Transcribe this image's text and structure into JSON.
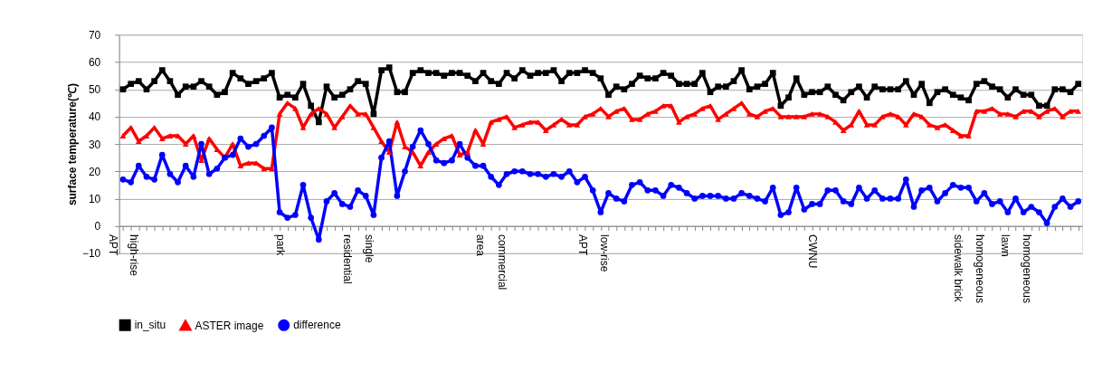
{
  "chart_data": {
    "type": "line",
    "ylabel": "surface temperature(℃)",
    "categories": [
      "high-rise\nAPT",
      null,
      null,
      null,
      null,
      null,
      null,
      null,
      null,
      null,
      null,
      null,
      null,
      null,
      null,
      null,
      null,
      null,
      null,
      null,
      "park",
      null,
      null,
      null,
      null,
      null,
      null,
      null,
      null,
      null,
      "single\nresidential",
      null,
      null,
      null,
      null,
      null,
      null,
      null,
      null,
      null,
      null,
      null,
      null,
      null,
      null,
      null,
      null,
      "commercial\narea",
      null,
      null,
      null,
      null,
      null,
      null,
      null,
      null,
      null,
      null,
      null,
      null,
      "low-rise\nAPT",
      null,
      null,
      null,
      null,
      null,
      null,
      null,
      null,
      null,
      null,
      null,
      null,
      null,
      null,
      null,
      null,
      null,
      null,
      null,
      null,
      null,
      null,
      null,
      null,
      null,
      null,
      null,
      "CWNU",
      null,
      null,
      null,
      null,
      null,
      null,
      null,
      null,
      null,
      null,
      null,
      null,
      null,
      null,
      null,
      null,
      null,
      null,
      null,
      "homogeneous\nsidewalk brick",
      null,
      null,
      null,
      null,
      null,
      "homogeneous\nlawn",
      null,
      null,
      null,
      null,
      null,
      null,
      null,
      null
    ],
    "series": [
      {
        "name": "in_situ",
        "color": "#000000",
        "marker": "square",
        "values": [
          50,
          52,
          53,
          50,
          53,
          57,
          53,
          48,
          51,
          51,
          53,
          51,
          48,
          49,
          56,
          54,
          52,
          53,
          54,
          56,
          47,
          48,
          47,
          52,
          44,
          38,
          51,
          47,
          48,
          50,
          53,
          52,
          41,
          57,
          58,
          49,
          49,
          56,
          57,
          56,
          56,
          55,
          56,
          56,
          55,
          53,
          56,
          53,
          52,
          56,
          54,
          57,
          55,
          56,
          56,
          57,
          53,
          56,
          56,
          57,
          56,
          54,
          48,
          51,
          50,
          52,
          55,
          54,
          54,
          56,
          55,
          52,
          52,
          52,
          56,
          49,
          51,
          51,
          53,
          57,
          50,
          51,
          52,
          56,
          44,
          47,
          54,
          48,
          49,
          49,
          51,
          48,
          46,
          49,
          51,
          47,
          51,
          50,
          50,
          50,
          53,
          48,
          52,
          45,
          49,
          50,
          48,
          47,
          46,
          52,
          53,
          51,
          50,
          47,
          50,
          48,
          48,
          44,
          44,
          50,
          50,
          49,
          52
        ]
      },
      {
        "name": "ASTER image",
        "color": "#ff0000",
        "marker": "triangle",
        "values": [
          33,
          36,
          31,
          33,
          36,
          32,
          33,
          33,
          30,
          33,
          24,
          32,
          28,
          25,
          30,
          22,
          23,
          23,
          21,
          21,
          41,
          45,
          43,
          36,
          41,
          43,
          41,
          36,
          40,
          44,
          41,
          41,
          36,
          31,
          27,
          38,
          29,
          27,
          22,
          27,
          30,
          32,
          33,
          26,
          27,
          35,
          30,
          38,
          39,
          40,
          36,
          37,
          38,
          38,
          35,
          37,
          39,
          37,
          37,
          40,
          41,
          43,
          40,
          42,
          43,
          39,
          39,
          41,
          42,
          44,
          44,
          38,
          40,
          41,
          43,
          44,
          39,
          41,
          43,
          45,
          41,
          40,
          42,
          43,
          40,
          40,
          40,
          40,
          41,
          41,
          40,
          38,
          35,
          37,
          42,
          37,
          37,
          40,
          41,
          40,
          37,
          41,
          40,
          37,
          36,
          37,
          35,
          33,
          33,
          42,
          42,
          43,
          41,
          41,
          40,
          42,
          42,
          40,
          42,
          43,
          40,
          42,
          42
        ]
      },
      {
        "name": "difference",
        "color": "#0000ff",
        "marker": "circle",
        "values": [
          17,
          16,
          22,
          18,
          17,
          26,
          19,
          16,
          22,
          18,
          30,
          19,
          21,
          25,
          26,
          32,
          29,
          30,
          33,
          36,
          5,
          3,
          4,
          15,
          3,
          -5,
          9,
          12,
          8,
          7,
          13,
          11,
          4,
          25,
          31,
          11,
          20,
          29,
          35,
          30,
          24,
          23,
          24,
          30,
          25,
          22,
          22,
          18,
          15,
          19,
          20,
          20,
          19,
          19,
          18,
          19,
          18,
          20,
          16,
          18,
          13,
          5,
          12,
          10,
          9,
          15,
          16,
          13,
          13,
          11,
          15,
          14,
          12,
          10,
          11,
          11,
          11,
          10,
          10,
          12,
          11,
          10,
          9,
          14,
          4,
          5,
          14,
          6,
          8,
          8,
          13,
          13,
          9,
          8,
          14,
          10,
          13,
          10,
          10,
          10,
          17,
          7,
          13,
          14,
          9,
          12,
          15,
          14,
          14,
          9,
          12,
          8,
          9,
          5,
          10,
          5,
          7,
          5,
          1,
          7,
          10,
          7,
          9
        ]
      }
    ],
    "ylim": [
      -10,
      70
    ],
    "yticks": [
      -10,
      0,
      10,
      20,
      30,
      40,
      50,
      60,
      70
    ],
    "grid": "y",
    "legend": "bottom",
    "line_style": "solid"
  }
}
